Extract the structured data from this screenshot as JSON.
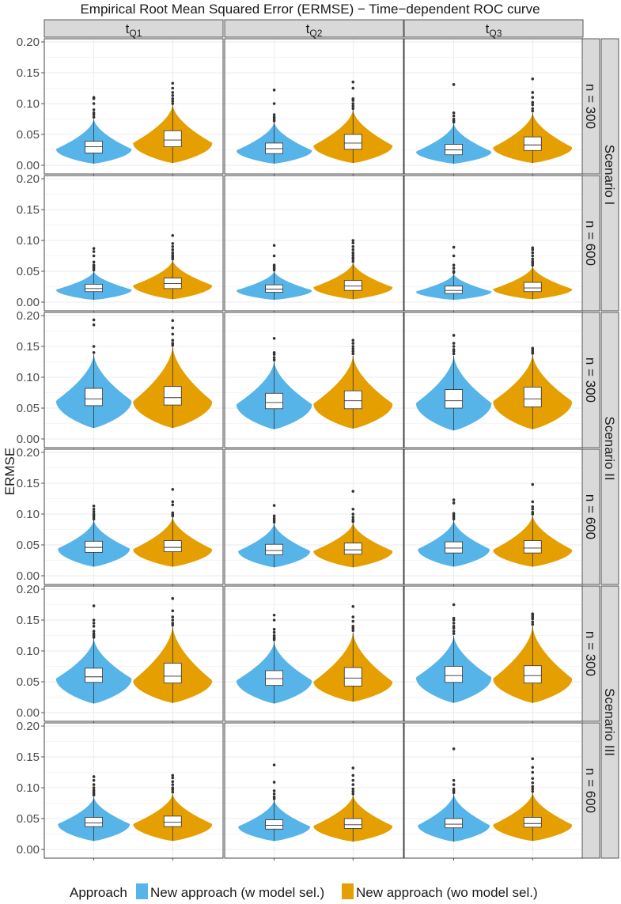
{
  "chart_data": {
    "type": "violin",
    "title": "Empirical Root Mean Squared Error (ERMSE) − Time−dependent ROC curve",
    "ylabel": "ERMSE",
    "ylim": [
      0.0,
      0.2
    ],
    "yticks": [
      "0.00",
      "0.05",
      "0.10",
      "0.15",
      "0.20"
    ],
    "grid": true,
    "columns": [
      {
        "base": "t",
        "sub": "Q1"
      },
      {
        "base": "t",
        "sub": "Q2"
      },
      {
        "base": "t",
        "sub": "Q3"
      }
    ],
    "scenarios": [
      "Scenario I",
      "Scenario II",
      "Scenario III"
    ],
    "row_labels": [
      "n = 300",
      "n = 600",
      "n = 300",
      "n = 600",
      "n = 300",
      "n = 600"
    ],
    "legend": {
      "title": "Approach",
      "position": "bottom",
      "items": [
        {
          "label": "New approach (w model sel.)",
          "color": "#56B4E9"
        },
        {
          "label": "New approach (wo model sel.)",
          "color": "#E69F00"
        }
      ]
    },
    "series": [
      {
        "name": "New approach (w model sel.)",
        "color": "#56B4E9",
        "panels": [
          [
            {
              "min": 0.003,
              "q1": 0.02,
              "median": 0.03,
              "q3": 0.039,
              "max": 0.075,
              "peak": 0.026,
              "width": 0.42,
              "outliers": [
                0.078,
                0.082,
                0.085,
                0.09,
                0.1,
                0.108,
                0.11
              ]
            },
            {
              "min": 0.003,
              "q1": 0.019,
              "median": 0.027,
              "q3": 0.036,
              "max": 0.07,
              "peak": 0.024,
              "width": 0.42,
              "outliers": [
                0.072,
                0.075,
                0.078,
                0.082,
                0.1,
                0.122
              ]
            },
            {
              "min": 0.003,
              "q1": 0.017,
              "median": 0.025,
              "q3": 0.034,
              "max": 0.068,
              "peak": 0.022,
              "width": 0.42,
              "outliers": [
                0.07,
                0.072,
                0.075,
                0.08,
                0.085,
                0.131
              ]
            }
          ],
          [
            {
              "min": 0.004,
              "q1": 0.017,
              "median": 0.022,
              "q3": 0.029,
              "max": 0.05,
              "peak": 0.02,
              "width": 0.42,
              "outliers": [
                0.052,
                0.055,
                0.058,
                0.06,
                0.065,
                0.075,
                0.082,
                0.087
              ]
            },
            {
              "min": 0.004,
              "q1": 0.016,
              "median": 0.021,
              "q3": 0.028,
              "max": 0.05,
              "peak": 0.019,
              "width": 0.42,
              "outliers": [
                0.052,
                0.055,
                0.058,
                0.06,
                0.075,
                0.092
              ]
            },
            {
              "min": 0.004,
              "q1": 0.014,
              "median": 0.019,
              "q3": 0.026,
              "max": 0.046,
              "peak": 0.017,
              "width": 0.42,
              "outliers": [
                0.048,
                0.05,
                0.055,
                0.06,
                0.075,
                0.089
              ]
            }
          ],
          [
            {
              "min": 0.018,
              "q1": 0.054,
              "median": 0.065,
              "q3": 0.082,
              "max": 0.137,
              "peak": 0.062,
              "width": 0.42,
              "outliers": [
                0.14,
                0.15,
                0.185,
                0.193
              ]
            },
            {
              "min": 0.016,
              "q1": 0.049,
              "median": 0.059,
              "q3": 0.074,
              "max": 0.126,
              "peak": 0.056,
              "width": 0.42,
              "outliers": [
                0.128,
                0.132,
                0.137,
                0.14,
                0.163
              ]
            },
            {
              "min": 0.014,
              "q1": 0.05,
              "median": 0.062,
              "q3": 0.08,
              "max": 0.135,
              "peak": 0.058,
              "width": 0.42,
              "outliers": [
                0.138,
                0.142,
                0.145,
                0.15,
                0.155,
                0.168
              ]
            }
          ],
          [
            {
              "min": 0.015,
              "q1": 0.038,
              "median": 0.046,
              "q3": 0.056,
              "max": 0.09,
              "peak": 0.044,
              "width": 0.4,
              "outliers": [
                0.092,
                0.095,
                0.098,
                0.1,
                0.104,
                0.108,
                0.113
              ]
            },
            {
              "min": 0.014,
              "q1": 0.034,
              "median": 0.041,
              "q3": 0.051,
              "max": 0.085,
              "peak": 0.04,
              "width": 0.4,
              "outliers": [
                0.087,
                0.09,
                0.093,
                0.097,
                0.114
              ]
            },
            {
              "min": 0.015,
              "q1": 0.037,
              "median": 0.045,
              "q3": 0.055,
              "max": 0.09,
              "peak": 0.043,
              "width": 0.4,
              "outliers": [
                0.092,
                0.095,
                0.098,
                0.101,
                0.118,
                0.123
              ]
            }
          ],
          [
            {
              "min": 0.015,
              "q1": 0.049,
              "median": 0.058,
              "q3": 0.072,
              "max": 0.12,
              "peak": 0.055,
              "width": 0.42,
              "outliers": [
                0.122,
                0.125,
                0.128,
                0.132,
                0.14,
                0.145,
                0.15,
                0.173
              ]
            },
            {
              "min": 0.015,
              "q1": 0.044,
              "median": 0.055,
              "q3": 0.068,
              "max": 0.115,
              "peak": 0.052,
              "width": 0.42,
              "outliers": [
                0.118,
                0.12,
                0.122,
                0.125,
                0.13,
                0.135,
                0.15,
                0.158
              ]
            },
            {
              "min": 0.016,
              "q1": 0.049,
              "median": 0.06,
              "q3": 0.075,
              "max": 0.125,
              "peak": 0.057,
              "width": 0.42,
              "outliers": [
                0.128,
                0.132,
                0.137,
                0.14,
                0.145,
                0.15,
                0.153,
                0.175
              ]
            }
          ],
          [
            {
              "min": 0.014,
              "q1": 0.037,
              "median": 0.043,
              "q3": 0.052,
              "max": 0.085,
              "peak": 0.041,
              "width": 0.4,
              "outliers": [
                0.088,
                0.09,
                0.093,
                0.096,
                0.1,
                0.105,
                0.112,
                0.118
              ]
            },
            {
              "min": 0.014,
              "q1": 0.033,
              "median": 0.039,
              "q3": 0.048,
              "max": 0.08,
              "peak": 0.037,
              "width": 0.4,
              "outliers": [
                0.082,
                0.085,
                0.09,
                0.095,
                0.109,
                0.137
              ]
            },
            {
              "min": 0.013,
              "q1": 0.035,
              "median": 0.041,
              "q3": 0.05,
              "max": 0.09,
              "peak": 0.039,
              "width": 0.4,
              "outliers": [
                0.092,
                0.095,
                0.098,
                0.105,
                0.112,
                0.163
              ]
            }
          ]
        ]
      },
      {
        "name": "New approach (wo model sel.)",
        "color": "#E69F00",
        "panels": [
          [
            {
              "min": 0.004,
              "q1": 0.03,
              "median": 0.041,
              "q3": 0.056,
              "max": 0.098,
              "peak": 0.036,
              "width": 0.44,
              "outliers": [
                0.1,
                0.104,
                0.108,
                0.113,
                0.118,
                0.125,
                0.133
              ]
            },
            {
              "min": 0.004,
              "q1": 0.026,
              "median": 0.036,
              "q3": 0.05,
              "max": 0.09,
              "peak": 0.032,
              "width": 0.44,
              "outliers": [
                0.092,
                0.096,
                0.1,
                0.105,
                0.108,
                0.125,
                0.135
              ]
            },
            {
              "min": 0.004,
              "q1": 0.024,
              "median": 0.033,
              "q3": 0.046,
              "max": 0.085,
              "peak": 0.029,
              "width": 0.44,
              "outliers": [
                0.088,
                0.092,
                0.098,
                0.102,
                0.11,
                0.118,
                0.14
              ]
            }
          ],
          [
            {
              "min": 0.005,
              "q1": 0.022,
              "median": 0.03,
              "q3": 0.039,
              "max": 0.068,
              "peak": 0.027,
              "width": 0.44,
              "outliers": [
                0.07,
                0.073,
                0.076,
                0.08,
                0.085,
                0.09,
                0.095,
                0.108
              ]
            },
            {
              "min": 0.005,
              "q1": 0.019,
              "median": 0.026,
              "q3": 0.035,
              "max": 0.064,
              "peak": 0.024,
              "width": 0.44,
              "outliers": [
                0.066,
                0.07,
                0.072,
                0.076,
                0.08,
                0.085,
                0.09,
                0.096,
                0.1
              ]
            },
            {
              "min": 0.005,
              "q1": 0.017,
              "median": 0.023,
              "q3": 0.032,
              "max": 0.058,
              "peak": 0.021,
              "width": 0.44,
              "outliers": [
                0.06,
                0.063,
                0.066,
                0.07,
                0.075,
                0.08,
                0.085,
                0.088
              ]
            }
          ],
          [
            {
              "min": 0.018,
              "q1": 0.055,
              "median": 0.067,
              "q3": 0.085,
              "max": 0.15,
              "peak": 0.061,
              "width": 0.44,
              "outliers": [
                0.152,
                0.155,
                0.16,
                0.17,
                0.18,
                0.192
              ]
            },
            {
              "min": 0.017,
              "q1": 0.049,
              "median": 0.062,
              "q3": 0.078,
              "max": 0.135,
              "peak": 0.057,
              "width": 0.44,
              "outliers": [
                0.138,
                0.142,
                0.146,
                0.15,
                0.155,
                0.16
              ]
            },
            {
              "min": 0.016,
              "q1": 0.052,
              "median": 0.065,
              "q3": 0.084,
              "max": 0.137,
              "peak": 0.061,
              "width": 0.44,
              "outliers": [
                0.139,
                0.141,
                0.144,
                0.147
              ]
            }
          ],
          [
            {
              "min": 0.015,
              "q1": 0.039,
              "median": 0.046,
              "q3": 0.057,
              "max": 0.095,
              "peak": 0.043,
              "width": 0.44,
              "outliers": [
                0.097,
                0.099,
                0.102,
                0.115,
                0.12,
                0.14
              ]
            },
            {
              "min": 0.014,
              "q1": 0.035,
              "median": 0.042,
              "q3": 0.053,
              "max": 0.086,
              "peak": 0.04,
              "width": 0.44,
              "outliers": [
                0.088,
                0.091,
                0.095,
                0.1,
                0.108,
                0.137
              ]
            },
            {
              "min": 0.015,
              "q1": 0.037,
              "median": 0.045,
              "q3": 0.057,
              "max": 0.098,
              "peak": 0.042,
              "width": 0.44,
              "outliers": [
                0.1,
                0.103,
                0.108,
                0.112,
                0.12,
                0.148
              ]
            }
          ],
          [
            {
              "min": 0.016,
              "q1": 0.048,
              "median": 0.059,
              "q3": 0.08,
              "max": 0.14,
              "peak": 0.052,
              "width": 0.44,
              "outliers": [
                0.142,
                0.145,
                0.15,
                0.155,
                0.165,
                0.185
              ]
            },
            {
              "min": 0.018,
              "q1": 0.043,
              "median": 0.056,
              "q3": 0.073,
              "max": 0.13,
              "peak": 0.05,
              "width": 0.44,
              "outliers": [
                0.133,
                0.137,
                0.14,
                0.148,
                0.155,
                0.172
              ]
            },
            {
              "min": 0.016,
              "q1": 0.048,
              "median": 0.06,
              "q3": 0.076,
              "max": 0.14,
              "peak": 0.055,
              "width": 0.44,
              "outliers": [
                0.143,
                0.147,
                0.152,
                0.155,
                0.158,
                0.16
              ]
            }
          ],
          [
            {
              "min": 0.014,
              "q1": 0.037,
              "median": 0.044,
              "q3": 0.054,
              "max": 0.09,
              "peak": 0.041,
              "width": 0.44,
              "outliers": [
                0.093,
                0.097,
                0.1,
                0.105,
                0.11,
                0.116,
                0.12
              ]
            },
            {
              "min": 0.013,
              "q1": 0.034,
              "median": 0.04,
              "q3": 0.05,
              "max": 0.088,
              "peak": 0.038,
              "width": 0.44,
              "outliers": [
                0.09,
                0.094,
                0.098,
                0.105,
                0.112,
                0.12,
                0.132
              ]
            },
            {
              "min": 0.014,
              "q1": 0.036,
              "median": 0.042,
              "q3": 0.052,
              "max": 0.092,
              "peak": 0.04,
              "width": 0.44,
              "outliers": [
                0.094,
                0.098,
                0.102,
                0.108,
                0.115,
                0.125,
                0.133,
                0.147
              ]
            }
          ]
        ]
      }
    ]
  }
}
